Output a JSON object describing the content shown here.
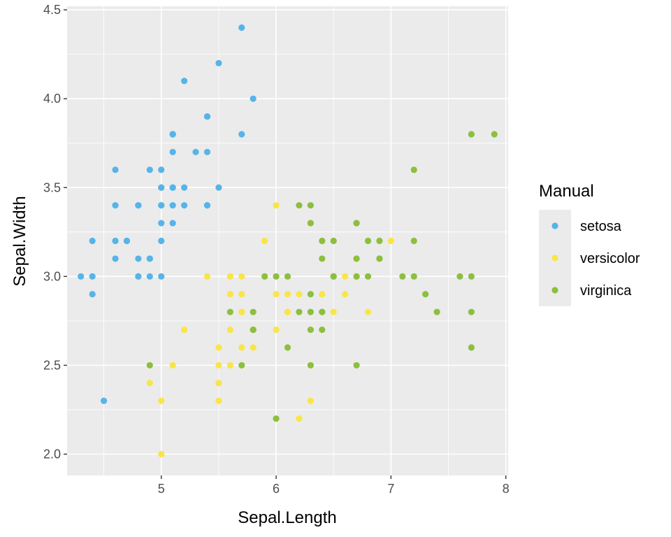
{
  "chart_data": {
    "type": "scatter",
    "title": "",
    "xlabel": "Sepal.Length",
    "ylabel": "Sepal.Width",
    "xlim": [
      4.18,
      8.02
    ],
    "ylim": [
      1.88,
      4.52
    ],
    "x_ticks": [
      5,
      6,
      7,
      8
    ],
    "y_ticks": [
      2.0,
      2.5,
      3.0,
      3.5,
      4.0,
      4.5
    ],
    "x_tick_labels": [
      "5",
      "6",
      "7",
      "8"
    ],
    "y_tick_labels": [
      "2.0",
      "2.5",
      "3.0",
      "3.5",
      "4.0",
      "4.5"
    ],
    "grid": true,
    "background": "#ebebeb",
    "legend": {
      "title": "Manual",
      "position": "right"
    },
    "series": [
      {
        "name": "setosa",
        "color": "#56B4E9",
        "points": [
          [
            5.1,
            3.5
          ],
          [
            4.9,
            3.0
          ],
          [
            4.7,
            3.2
          ],
          [
            4.6,
            3.1
          ],
          [
            5.0,
            3.6
          ],
          [
            5.4,
            3.9
          ],
          [
            4.6,
            3.4
          ],
          [
            5.0,
            3.4
          ],
          [
            4.4,
            2.9
          ],
          [
            4.9,
            3.1
          ],
          [
            5.4,
            3.7
          ],
          [
            4.8,
            3.4
          ],
          [
            4.8,
            3.0
          ],
          [
            4.3,
            3.0
          ],
          [
            5.8,
            4.0
          ],
          [
            5.7,
            4.4
          ],
          [
            5.4,
            3.9
          ],
          [
            5.1,
            3.5
          ],
          [
            5.7,
            3.8
          ],
          [
            5.1,
            3.8
          ],
          [
            5.4,
            3.4
          ],
          [
            5.1,
            3.7
          ],
          [
            4.6,
            3.6
          ],
          [
            5.1,
            3.3
          ],
          [
            4.8,
            3.4
          ],
          [
            5.0,
            3.0
          ],
          [
            5.0,
            3.4
          ],
          [
            5.2,
            3.5
          ],
          [
            5.2,
            3.4
          ],
          [
            4.7,
            3.2
          ],
          [
            4.8,
            3.1
          ],
          [
            5.4,
            3.4
          ],
          [
            5.2,
            4.1
          ],
          [
            5.5,
            4.2
          ],
          [
            4.9,
            3.1
          ],
          [
            5.0,
            3.2
          ],
          [
            5.5,
            3.5
          ],
          [
            4.9,
            3.6
          ],
          [
            4.4,
            3.0
          ],
          [
            5.1,
            3.4
          ],
          [
            5.0,
            3.5
          ],
          [
            4.5,
            2.3
          ],
          [
            4.4,
            3.2
          ],
          [
            5.0,
            3.5
          ],
          [
            5.1,
            3.8
          ],
          [
            4.8,
            3.0
          ],
          [
            5.1,
            3.8
          ],
          [
            4.6,
            3.2
          ],
          [
            5.3,
            3.7
          ],
          [
            5.0,
            3.3
          ]
        ]
      },
      {
        "name": "versicolor",
        "color": "#F9E547",
        "points": [
          [
            7.0,
            3.2
          ],
          [
            6.4,
            3.2
          ],
          [
            6.9,
            3.1
          ],
          [
            5.5,
            2.3
          ],
          [
            6.5,
            2.8
          ],
          [
            5.7,
            2.8
          ],
          [
            6.3,
            3.3
          ],
          [
            4.9,
            2.4
          ],
          [
            6.6,
            2.9
          ],
          [
            5.2,
            2.7
          ],
          [
            5.0,
            2.0
          ],
          [
            5.9,
            3.0
          ],
          [
            6.0,
            2.2
          ],
          [
            6.1,
            2.9
          ],
          [
            5.6,
            2.9
          ],
          [
            6.7,
            3.1
          ],
          [
            5.6,
            3.0
          ],
          [
            5.8,
            2.7
          ],
          [
            6.2,
            2.2
          ],
          [
            5.6,
            2.5
          ],
          [
            5.9,
            3.2
          ],
          [
            6.1,
            2.8
          ],
          [
            6.3,
            2.5
          ],
          [
            6.1,
            2.8
          ],
          [
            6.4,
            2.9
          ],
          [
            6.6,
            3.0
          ],
          [
            6.8,
            2.8
          ],
          [
            6.7,
            3.0
          ],
          [
            6.0,
            2.9
          ],
          [
            5.7,
            2.6
          ],
          [
            5.5,
            2.4
          ],
          [
            5.5,
            2.4
          ],
          [
            5.8,
            2.7
          ],
          [
            6.0,
            2.7
          ],
          [
            5.4,
            3.0
          ],
          [
            6.0,
            3.4
          ],
          [
            6.7,
            3.1
          ],
          [
            6.3,
            2.3
          ],
          [
            5.6,
            3.0
          ],
          [
            5.5,
            2.5
          ],
          [
            5.5,
            2.6
          ],
          [
            6.1,
            3.0
          ],
          [
            5.8,
            2.6
          ],
          [
            5.0,
            2.3
          ],
          [
            5.6,
            2.7
          ],
          [
            5.7,
            3.0
          ],
          [
            5.7,
            2.9
          ],
          [
            6.2,
            2.9
          ],
          [
            5.1,
            2.5
          ],
          [
            5.7,
            2.8
          ]
        ]
      },
      {
        "name": "virginica",
        "color": "#8CBF3F",
        "points": [
          [
            6.3,
            3.3
          ],
          [
            5.8,
            2.7
          ],
          [
            7.1,
            3.0
          ],
          [
            6.3,
            2.9
          ],
          [
            6.5,
            3.0
          ],
          [
            7.6,
            3.0
          ],
          [
            4.9,
            2.5
          ],
          [
            7.3,
            2.9
          ],
          [
            6.7,
            2.5
          ],
          [
            7.2,
            3.6
          ],
          [
            6.5,
            3.2
          ],
          [
            6.4,
            2.7
          ],
          [
            6.8,
            3.0
          ],
          [
            5.7,
            2.5
          ],
          [
            5.8,
            2.8
          ],
          [
            6.4,
            3.2
          ],
          [
            6.5,
            3.0
          ],
          [
            7.7,
            3.8
          ],
          [
            7.7,
            2.6
          ],
          [
            6.0,
            2.2
          ],
          [
            6.9,
            3.2
          ],
          [
            5.6,
            2.8
          ],
          [
            7.7,
            2.8
          ],
          [
            6.3,
            2.7
          ],
          [
            6.7,
            3.3
          ],
          [
            7.2,
            3.2
          ],
          [
            6.2,
            2.8
          ],
          [
            6.1,
            3.0
          ],
          [
            6.4,
            2.8
          ],
          [
            7.2,
            3.0
          ],
          [
            7.4,
            2.8
          ],
          [
            7.9,
            3.8
          ],
          [
            6.4,
            2.8
          ],
          [
            6.3,
            2.8
          ],
          [
            6.1,
            2.6
          ],
          [
            7.7,
            3.0
          ],
          [
            6.3,
            3.4
          ],
          [
            6.4,
            3.1
          ],
          [
            6.0,
            3.0
          ],
          [
            6.9,
            3.1
          ],
          [
            6.7,
            3.1
          ],
          [
            6.9,
            3.1
          ],
          [
            5.8,
            2.7
          ],
          [
            6.8,
            3.2
          ],
          [
            6.7,
            3.3
          ],
          [
            6.7,
            3.0
          ],
          [
            6.3,
            2.5
          ],
          [
            6.5,
            3.0
          ],
          [
            6.2,
            3.4
          ],
          [
            5.9,
            3.0
          ]
        ]
      }
    ]
  }
}
